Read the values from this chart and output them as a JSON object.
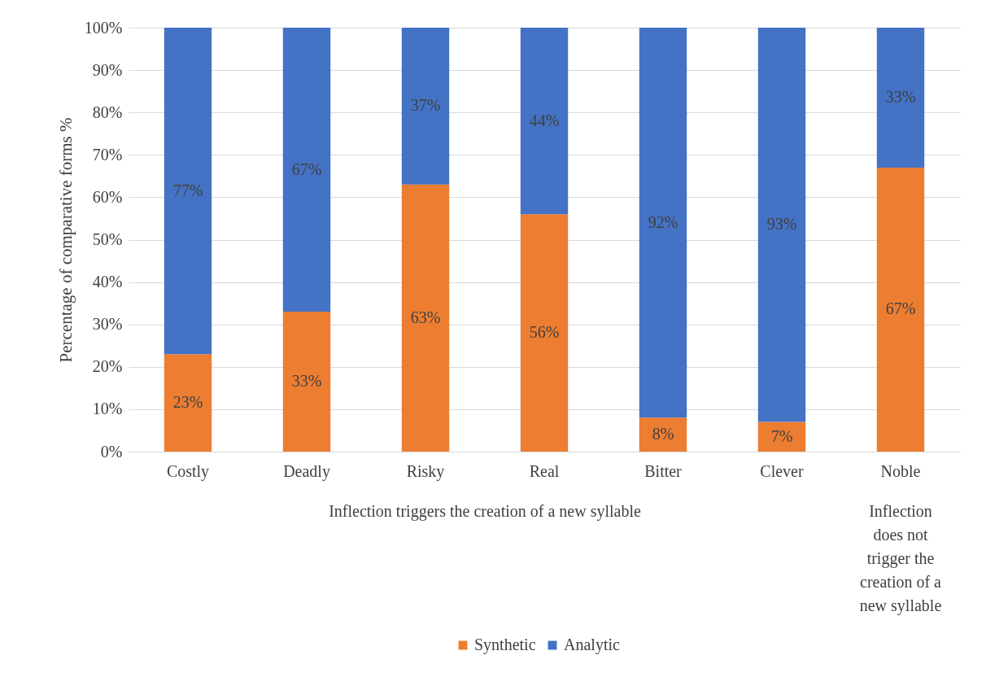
{
  "chart_data": {
    "type": "bar",
    "stacked": true,
    "ylabel": "Percentage of comparative forms %",
    "categories": [
      "Costly",
      "Deadly",
      "Risky",
      "Real",
      "Bitter",
      "Clever",
      "Noble"
    ],
    "series": [
      {
        "name": "Synthetic",
        "color": "#ed7d31",
        "values": [
          23,
          33,
          63,
          56,
          8,
          7,
          67
        ],
        "value_labels": [
          "23%",
          "33%",
          "63%",
          "56%",
          "8%",
          "7%",
          "67%"
        ]
      },
      {
        "name": "Analytic",
        "color": "#4472c4",
        "values": [
          77,
          67,
          37,
          44,
          92,
          93,
          33
        ],
        "value_labels": [
          "77%",
          "67%",
          "37%",
          "44%",
          "92%",
          "93%",
          "33%"
        ]
      }
    ],
    "ylim": [
      0,
      100
    ],
    "yticks": [
      {
        "value": 0,
        "label": "0%"
      },
      {
        "value": 10,
        "label": "10%"
      },
      {
        "value": 20,
        "label": "20%"
      },
      {
        "value": 30,
        "label": "30%"
      },
      {
        "value": 40,
        "label": "40%"
      },
      {
        "value": 50,
        "label": "50%"
      },
      {
        "value": 60,
        "label": "60%"
      },
      {
        "value": 70,
        "label": "70%"
      },
      {
        "value": 80,
        "label": "80%"
      },
      {
        "value": 90,
        "label": "90%"
      },
      {
        "value": 100,
        "label": "100%"
      }
    ],
    "grid": "y",
    "legend": "bottom",
    "annotations": [
      "Inflection triggers the creation of a new syllable",
      "Inflection does not trigger the creation of a new syllable"
    ]
  }
}
